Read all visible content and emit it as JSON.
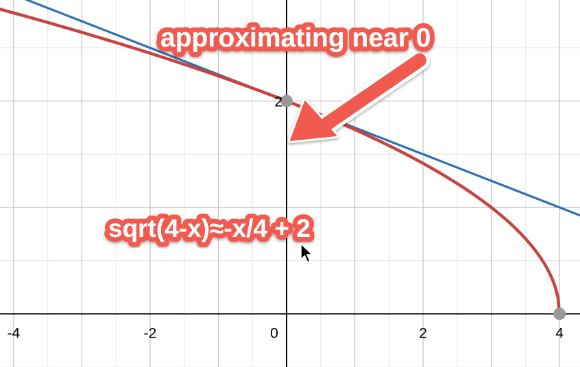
{
  "chart_data": {
    "type": "line",
    "title": "",
    "xlabel": "",
    "ylabel": "",
    "xlim": [
      -4.2,
      4.3
    ],
    "ylim": [
      -0.5,
      2.95
    ],
    "grid": true,
    "minor_grid_step": 0.5,
    "major_grid_step": 1,
    "x_ticks": [
      -4,
      -2,
      0,
      2,
      4
    ],
    "x_tick_labels": [
      "-4",
      "-2",
      "0",
      "2",
      "4"
    ],
    "y_ticks": [
      2
    ],
    "y_tick_labels": [
      "2"
    ],
    "series": [
      {
        "expression": "sqrt(4-x)",
        "color": "#c74440",
        "domain": [
          -4.2,
          4
        ]
      },
      {
        "expression": "-x/4 + 2",
        "color": "#2d70b3",
        "domain": [
          -4.2,
          4.3
        ]
      }
    ],
    "points": [
      {
        "x": 0,
        "y": 2,
        "color": "#999999"
      },
      {
        "x": 4,
        "y": 0,
        "color": "#999999"
      }
    ],
    "annotations": [
      {
        "text": "approximating near 0",
        "color": "#f05a50"
      },
      {
        "text": "sqrt(4-x)≈-x/4 + 2",
        "color": "#f05a50"
      }
    ]
  }
}
